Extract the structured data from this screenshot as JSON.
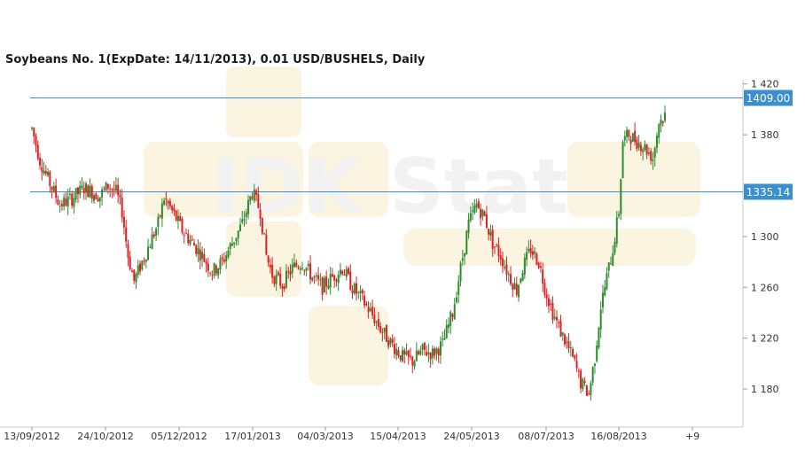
{
  "chart_data": {
    "type": "candlestick",
    "title": "Soybeans  No. 1(ExpDate: 14/11/2013), 0.01 USD/BUSHELS, Daily",
    "watermark": "IDK Stat",
    "y_ticks": [
      {
        "value": 1420,
        "label": "1 420"
      },
      {
        "value": 1380,
        "label": "1 380"
      },
      {
        "value": 1300,
        "label": "1 300"
      },
      {
        "value": 1260,
        "label": "1 260"
      },
      {
        "value": 1220,
        "label": "1 220"
      },
      {
        "value": 1180,
        "label": "1 180"
      }
    ],
    "x_ticks": [
      {
        "label": "13/09/2012"
      },
      {
        "label": "24/10/2012"
      },
      {
        "label": "05/12/2012"
      },
      {
        "label": "17/01/2013"
      },
      {
        "label": "04/03/2013"
      },
      {
        "label": "15/04/2013"
      },
      {
        "label": "24/05/2013"
      },
      {
        "label": "08/07/2013"
      },
      {
        "label": "16/08/2013"
      },
      {
        "label": "+9"
      }
    ],
    "ylim": [
      1157,
      1424
    ],
    "horizontal_lines": [
      {
        "value": 1409.0,
        "label": "1409.00"
      },
      {
        "value": 1335.14,
        "label": "1335.14"
      }
    ],
    "colors": {
      "up": "#2e8b2e",
      "down": "#e02020",
      "hline": "#3a8fd0",
      "label_bg": "#3a8fd0",
      "grid": "#d8d8d8",
      "watermark": "#f4ead0"
    },
    "path_anchors": [
      [
        0,
        1385
      ],
      [
        4,
        1360
      ],
      [
        8,
        1345
      ],
      [
        14,
        1325
      ],
      [
        20,
        1330
      ],
      [
        26,
        1338
      ],
      [
        30,
        1335
      ],
      [
        34,
        1332
      ],
      [
        38,
        1340
      ],
      [
        42,
        1335
      ],
      [
        45,
        1320
      ],
      [
        48,
        1285
      ],
      [
        51,
        1265
      ],
      [
        55,
        1280
      ],
      [
        59,
        1295
      ],
      [
        63,
        1310
      ],
      [
        66,
        1330
      ],
      [
        70,
        1320
      ],
      [
        75,
        1305
      ],
      [
        80,
        1295
      ],
      [
        85,
        1285
      ],
      [
        90,
        1272
      ],
      [
        95,
        1280
      ],
      [
        100,
        1295
      ],
      [
        105,
        1310
      ],
      [
        110,
        1335
      ],
      [
        114,
        1320
      ],
      [
        117,
        1285
      ],
      [
        120,
        1270
      ],
      [
        125,
        1262
      ],
      [
        130,
        1275
      ],
      [
        135,
        1280
      ],
      [
        140,
        1268
      ],
      [
        145,
        1260
      ],
      [
        150,
        1268
      ],
      [
        155,
        1275
      ],
      [
        160,
        1260
      ],
      [
        165,
        1250
      ],
      [
        170,
        1238
      ],
      [
        175,
        1225
      ],
      [
        180,
        1215
      ],
      [
        185,
        1205
      ],
      [
        190,
        1202
      ],
      [
        195,
        1210
      ],
      [
        200,
        1208
      ],
      [
        205,
        1215
      ],
      [
        210,
        1240
      ],
      [
        214,
        1275
      ],
      [
        218,
        1310
      ],
      [
        222,
        1325
      ],
      [
        226,
        1315
      ],
      [
        230,
        1295
      ],
      [
        234,
        1285
      ],
      [
        238,
        1270
      ],
      [
        242,
        1258
      ],
      [
        245,
        1275
      ],
      [
        249,
        1290
      ],
      [
        253,
        1280
      ],
      [
        256,
        1260
      ],
      [
        260,
        1240
      ],
      [
        264,
        1225
      ],
      [
        267,
        1215
      ],
      [
        271,
        1200
      ],
      [
        274,
        1185
      ],
      [
        278,
        1176
      ],
      [
        281,
        1205
      ],
      [
        284,
        1245
      ],
      [
        287,
        1268
      ],
      [
        290,
        1290
      ],
      [
        293,
        1320
      ],
      [
        295,
        1375
      ],
      [
        298,
        1380
      ],
      [
        302,
        1375
      ],
      [
        306,
        1370
      ],
      [
        310,
        1362
      ],
      [
        313,
        1390
      ],
      [
        316,
        1395
      ]
    ]
  }
}
